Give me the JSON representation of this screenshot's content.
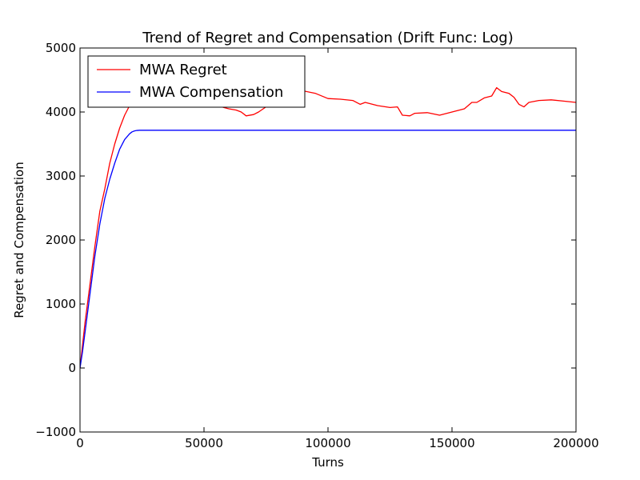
{
  "chart_data": {
    "type": "line",
    "title": "Trend of Regret and Compensation (Drift Func: Log)",
    "xlabel": "Turns",
    "ylabel": "Regret and Compensation",
    "xlim": [
      0,
      200000
    ],
    "ylim": [
      -1000,
      5000
    ],
    "xticks": [
      0,
      50000,
      100000,
      150000,
      200000
    ],
    "xtick_labels": [
      "0",
      "50000",
      "100000",
      "150000",
      "200000"
    ],
    "yticks": [
      -1000,
      0,
      1000,
      2000,
      3000,
      4000,
      5000
    ],
    "ytick_labels": [
      "−1000",
      "0",
      "1000",
      "2000",
      "3000",
      "4000",
      "5000"
    ],
    "grid": false,
    "legend_position": "top-left",
    "series": [
      {
        "name": "MWA Regret",
        "color": "#ff0000",
        "x": [
          0,
          1000,
          2000,
          4000,
          6000,
          8000,
          10000,
          12000,
          14000,
          16000,
          18000,
          20000,
          22000,
          25000,
          30000,
          35000,
          40000,
          45000,
          50000,
          55000,
          58000,
          60000,
          63000,
          65000,
          67000,
          70000,
          72000,
          75000,
          78000,
          80000,
          85000,
          88000,
          90000,
          95000,
          100000,
          105000,
          110000,
          113000,
          115000,
          120000,
          125000,
          128000,
          130000,
          133000,
          135000,
          140000,
          145000,
          150000,
          155000,
          158000,
          160000,
          163000,
          166000,
          168000,
          170000,
          173000,
          175000,
          177000,
          179000,
          181000,
          185000,
          190000,
          195000,
          200000
        ],
        "values": [
          0,
          350,
          700,
          1300,
          1900,
          2450,
          2800,
          3200,
          3500,
          3750,
          3950,
          4100,
          4180,
          4250,
          4270,
          4240,
          4210,
          4180,
          4150,
          4110,
          4070,
          4050,
          4030,
          4000,
          3940,
          3960,
          4000,
          4080,
          4130,
          4200,
          4300,
          4350,
          4330,
          4290,
          4210,
          4200,
          4180,
          4120,
          4150,
          4100,
          4070,
          4080,
          3950,
          3940,
          3980,
          3990,
          3950,
          4000,
          4050,
          4150,
          4150,
          4220,
          4250,
          4380,
          4320,
          4290,
          4230,
          4120,
          4080,
          4150,
          4180,
          4190,
          4170,
          4150
        ]
      },
      {
        "name": "MWA Compensation",
        "color": "#0000ff",
        "x": [
          0,
          1000,
          2000,
          4000,
          6000,
          8000,
          10000,
          12000,
          14000,
          16000,
          18000,
          20000,
          21000,
          22000,
          23000,
          24000,
          25000,
          30000,
          50000,
          100000,
          150000,
          200000
        ],
        "values": [
          0,
          250,
          550,
          1150,
          1750,
          2250,
          2650,
          2950,
          3200,
          3420,
          3570,
          3660,
          3690,
          3705,
          3712,
          3715,
          3715,
          3715,
          3715,
          3715,
          3715,
          3715
        ]
      }
    ]
  }
}
